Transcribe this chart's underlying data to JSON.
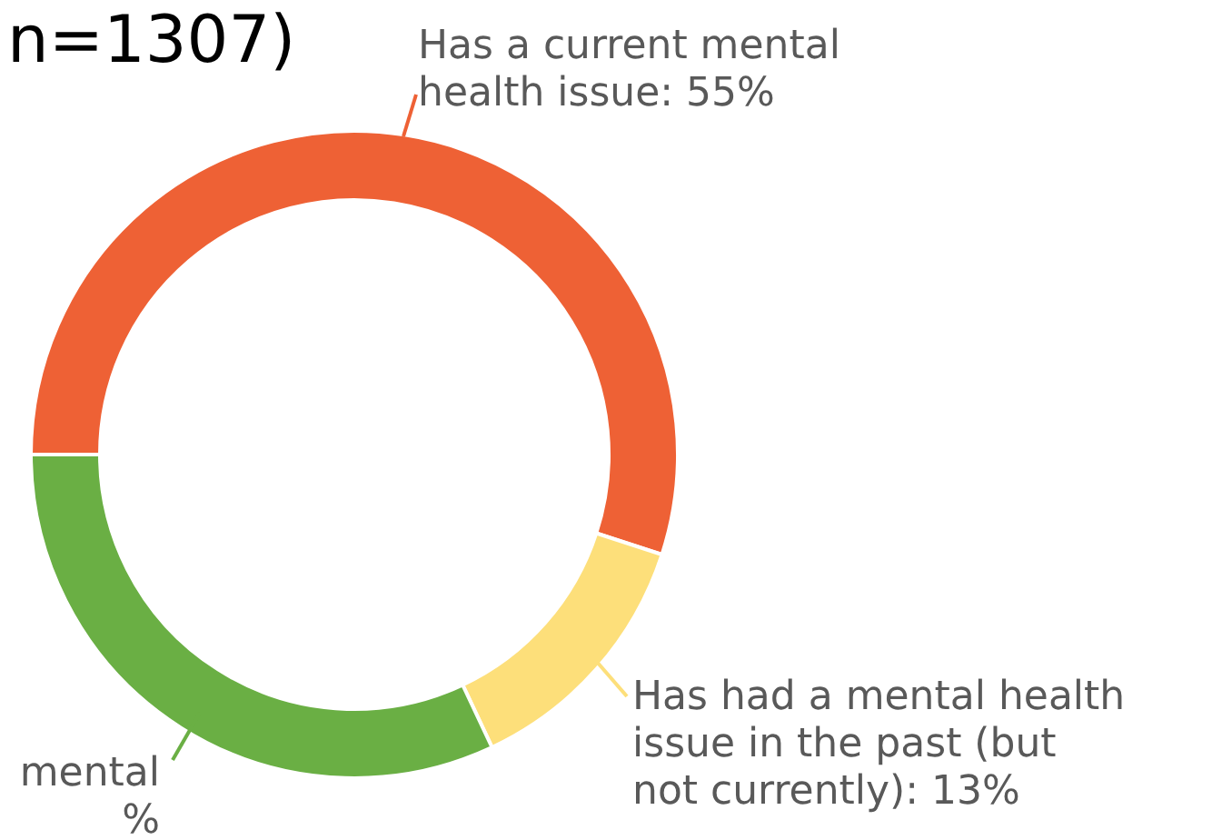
{
  "chart_data": {
    "type": "donut",
    "title": "n=1307)",
    "categories": [
      "Has a current mental health issue",
      "Has had a mental health issue in the past (but not currently)",
      "mental %"
    ],
    "values": [
      55,
      13,
      32
    ],
    "colors": [
      "#ee6135",
      "#fddf7a",
      "#6aaf44"
    ],
    "value_labels": [
      "55%",
      "13%",
      null
    ]
  }
}
